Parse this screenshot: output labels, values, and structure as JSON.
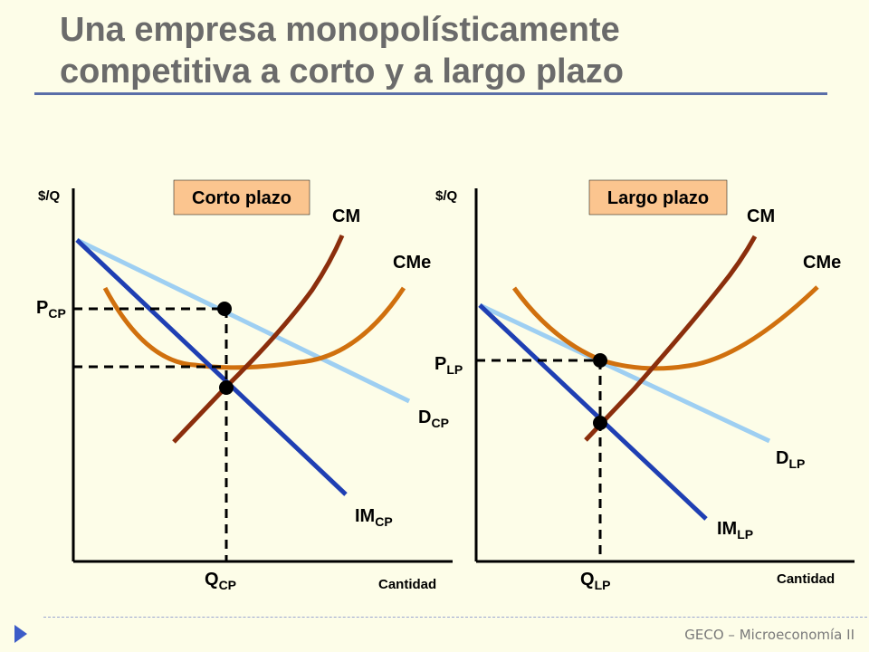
{
  "title": {
    "line1": "Una empresa monopolísticamente",
    "line2": "competitiva a corto y a largo plazo"
  },
  "footer": "GECO – Microeconomía II",
  "colors": {
    "cm": "#8b2e0c",
    "cme": "#d0700e",
    "demand": "#9ecff2",
    "marginal_revenue": "#1f3fb3",
    "box": "#fbc58f",
    "background": "#fdfde8"
  },
  "short_run": {
    "box_label": "Corto plazo",
    "y_axis": "$/Q",
    "x_axis": "Cantidad",
    "cm": "CM",
    "cme": "CMe",
    "price": {
      "main": "P",
      "sub": "CP"
    },
    "quantity": {
      "main": "Q",
      "sub": "CP"
    },
    "demand": {
      "main": "D",
      "sub": "CP"
    },
    "mr": {
      "main": "IM",
      "sub": "CP"
    }
  },
  "long_run": {
    "box_label": "Largo plazo",
    "y_axis": "$/Q",
    "x_axis": "Cantidad",
    "cm": "CM",
    "cme": "CMe",
    "price": {
      "main": "P",
      "sub": "LP"
    },
    "quantity": {
      "main": "Q",
      "sub": "LP"
    },
    "demand": {
      "main": "D",
      "sub": "LP"
    },
    "mr": {
      "main": "IM",
      "sub": "LP"
    }
  }
}
